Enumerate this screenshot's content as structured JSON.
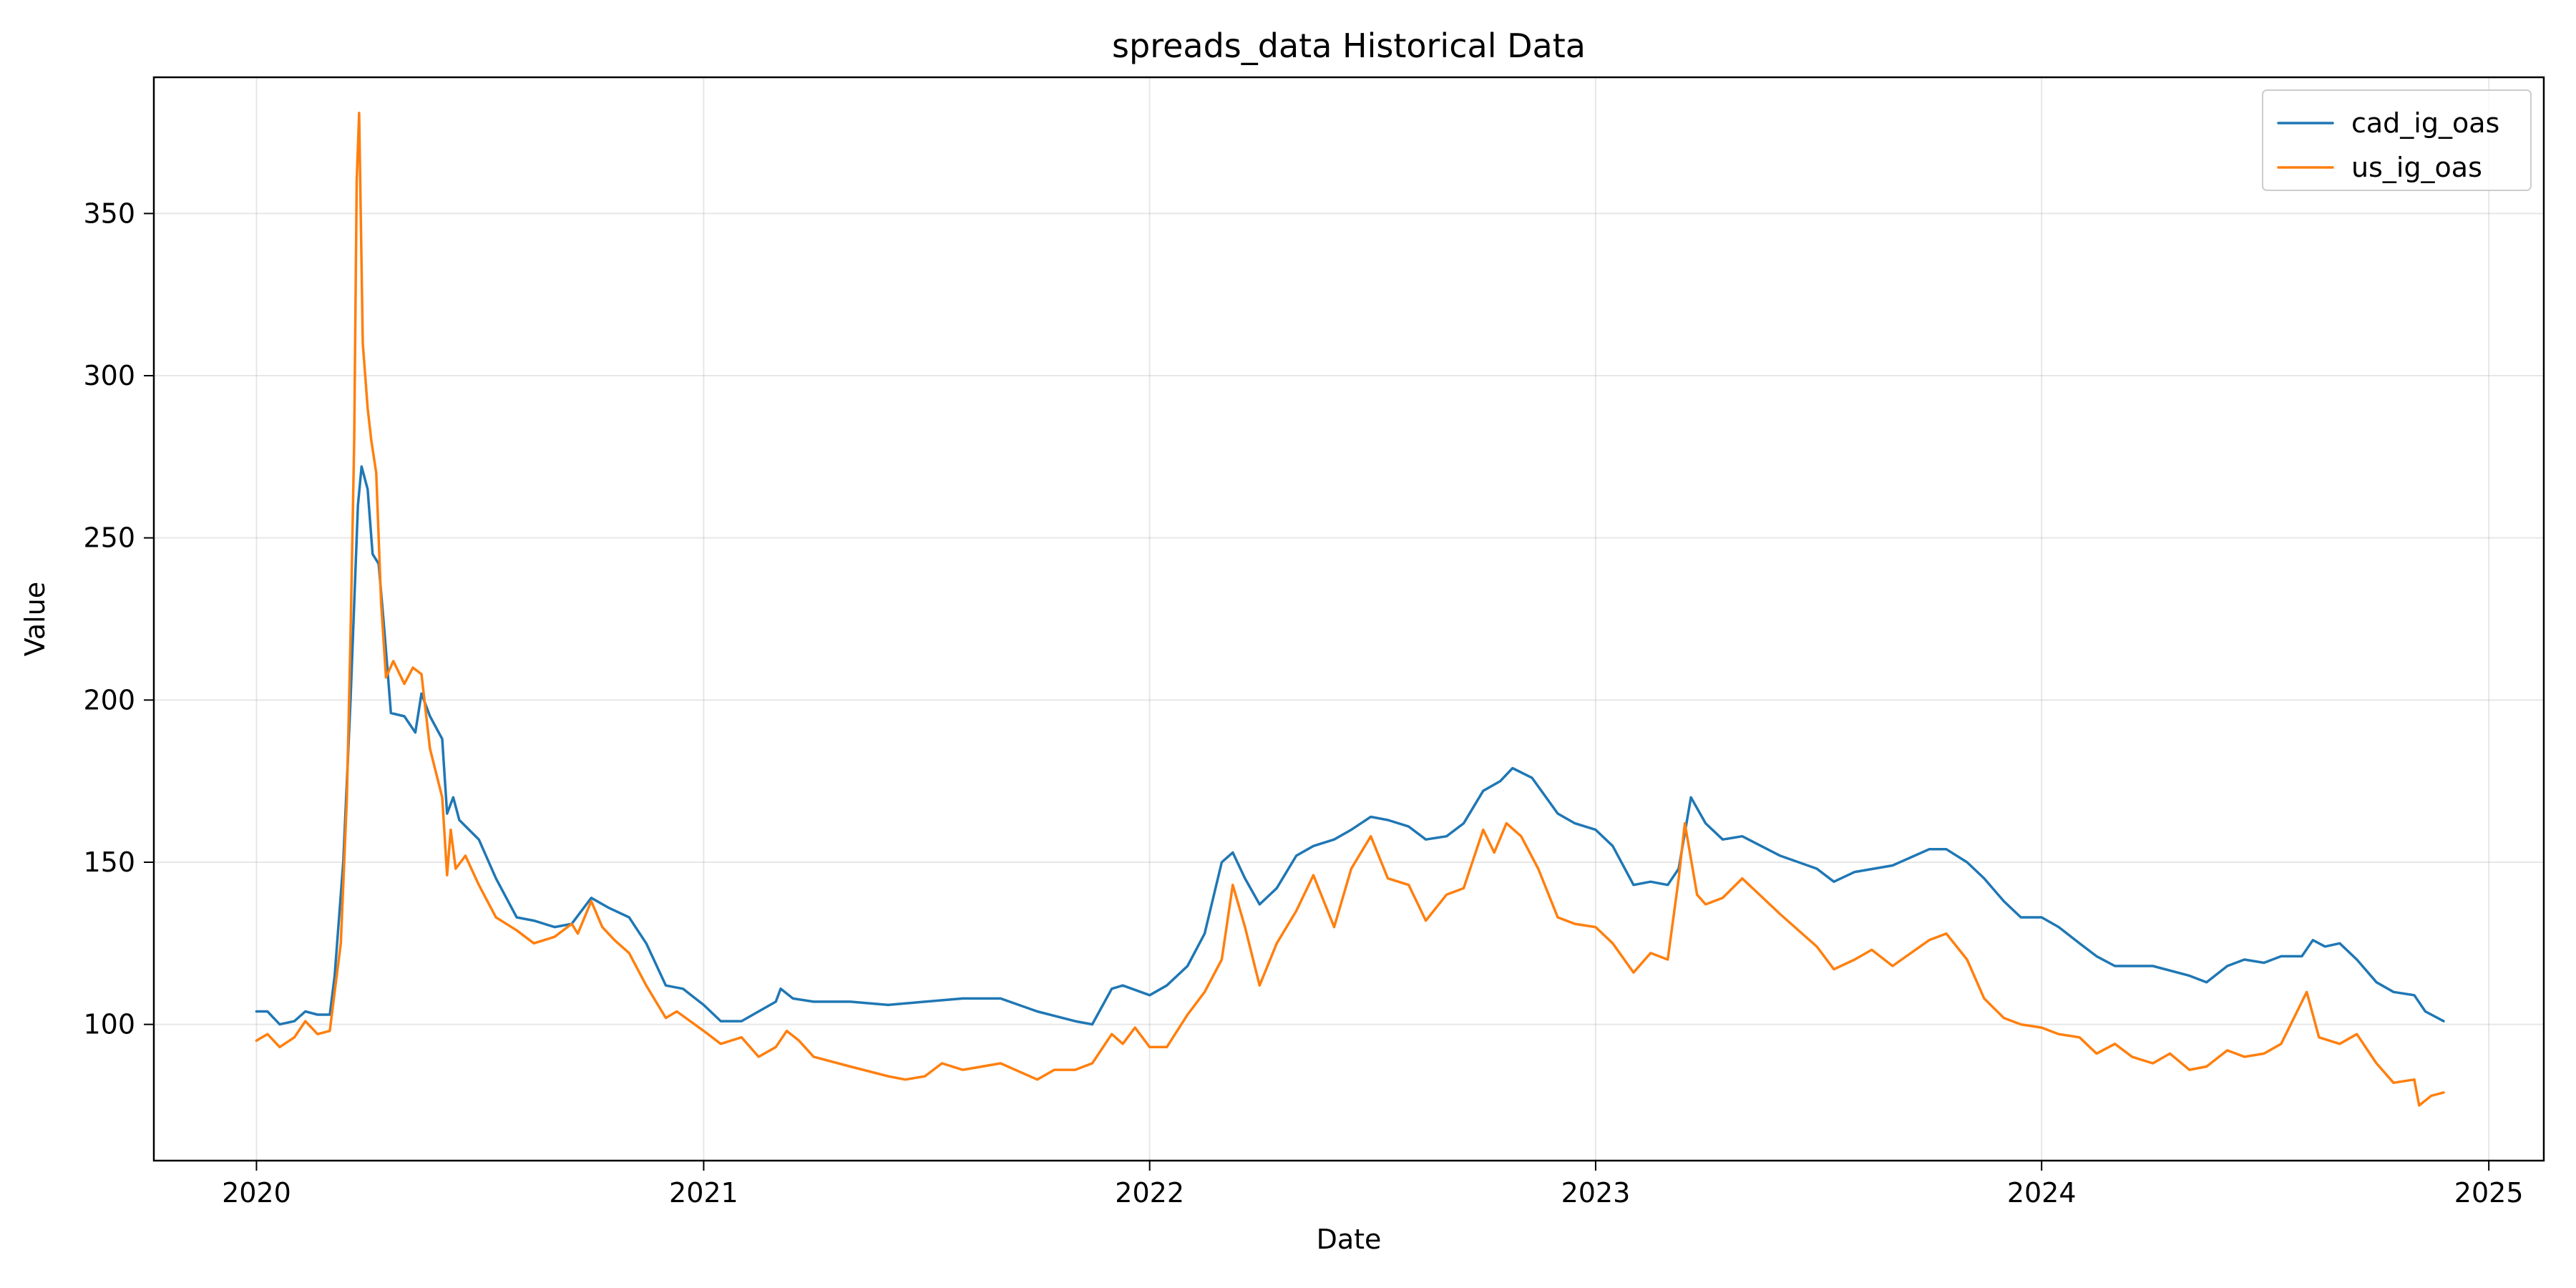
{
  "chart_data": {
    "type": "line",
    "title": "spreads_data Historical Data",
    "xlabel": "Date",
    "ylabel": "Value",
    "x_type": "date",
    "xlim": [
      "2019-10-09",
      "2025-02-15"
    ],
    "ylim": [
      58,
      392
    ],
    "xticks": [
      "2020-01-01",
      "2021-01-01",
      "2022-01-01",
      "2023-01-01",
      "2024-01-01",
      "2025-01-01"
    ],
    "xtick_labels": [
      "2020",
      "2021",
      "2022",
      "2023",
      "2024",
      "2025"
    ],
    "yticks": [
      100,
      150,
      200,
      250,
      300,
      350
    ],
    "ytick_labels": [
      "100",
      "150",
      "200",
      "250",
      "300",
      "350"
    ],
    "grid": true,
    "legend_position": "top-right",
    "colors": {
      "cad_ig_oas": "#1f77b4",
      "us_ig_oas": "#ff7f0e"
    },
    "series": [
      {
        "name": "cad_ig_oas",
        "color": "#1f77b4",
        "points": [
          [
            "2020-01-01",
            104
          ],
          [
            "2020-01-10",
            104
          ],
          [
            "2020-01-20",
            100
          ],
          [
            "2020-02-01",
            101
          ],
          [
            "2020-02-10",
            104
          ],
          [
            "2020-02-20",
            103
          ],
          [
            "2020-03-01",
            103
          ],
          [
            "2020-03-05",
            115
          ],
          [
            "2020-03-12",
            150
          ],
          [
            "2020-03-18",
            200
          ],
          [
            "2020-03-24",
            260
          ],
          [
            "2020-03-27",
            272
          ],
          [
            "2020-04-01",
            265
          ],
          [
            "2020-04-05",
            245
          ],
          [
            "2020-04-10",
            242
          ],
          [
            "2020-04-15",
            220
          ],
          [
            "2020-04-20",
            196
          ],
          [
            "2020-05-01",
            195
          ],
          [
            "2020-05-10",
            190
          ],
          [
            "2020-05-15",
            202
          ],
          [
            "2020-05-22",
            195
          ],
          [
            "2020-06-01",
            188
          ],
          [
            "2020-06-05",
            165
          ],
          [
            "2020-06-10",
            170
          ],
          [
            "2020-06-15",
            163
          ],
          [
            "2020-07-01",
            157
          ],
          [
            "2020-07-15",
            145
          ],
          [
            "2020-08-01",
            133
          ],
          [
            "2020-08-15",
            132
          ],
          [
            "2020-09-01",
            130
          ],
          [
            "2020-09-15",
            131
          ],
          [
            "2020-10-01",
            139
          ],
          [
            "2020-10-15",
            136
          ],
          [
            "2020-11-01",
            133
          ],
          [
            "2020-11-15",
            125
          ],
          [
            "2020-12-01",
            112
          ],
          [
            "2020-12-15",
            111
          ],
          [
            "2021-01-01",
            106
          ],
          [
            "2021-01-15",
            101
          ],
          [
            "2021-02-01",
            101
          ],
          [
            "2021-02-15",
            104
          ],
          [
            "2021-03-01",
            107
          ],
          [
            "2021-03-05",
            111
          ],
          [
            "2021-03-15",
            108
          ],
          [
            "2021-04-01",
            107
          ],
          [
            "2021-05-01",
            107
          ],
          [
            "2021-06-01",
            106
          ],
          [
            "2021-07-01",
            107
          ],
          [
            "2021-08-01",
            108
          ],
          [
            "2021-09-01",
            108
          ],
          [
            "2021-10-01",
            104
          ],
          [
            "2021-11-01",
            101
          ],
          [
            "2021-11-15",
            100
          ],
          [
            "2021-12-01",
            111
          ],
          [
            "2021-12-10",
            112
          ],
          [
            "2022-01-01",
            109
          ],
          [
            "2022-01-15",
            112
          ],
          [
            "2022-02-01",
            118
          ],
          [
            "2022-02-15",
            128
          ],
          [
            "2022-03-01",
            150
          ],
          [
            "2022-03-10",
            153
          ],
          [
            "2022-03-20",
            145
          ],
          [
            "2022-04-01",
            137
          ],
          [
            "2022-04-15",
            142
          ],
          [
            "2022-05-01",
            152
          ],
          [
            "2022-05-15",
            155
          ],
          [
            "2022-06-01",
            157
          ],
          [
            "2022-06-15",
            160
          ],
          [
            "2022-07-01",
            164
          ],
          [
            "2022-07-15",
            163
          ],
          [
            "2022-08-01",
            161
          ],
          [
            "2022-08-15",
            157
          ],
          [
            "2022-09-01",
            158
          ],
          [
            "2022-09-15",
            162
          ],
          [
            "2022-10-01",
            172
          ],
          [
            "2022-10-15",
            175
          ],
          [
            "2022-10-25",
            179
          ],
          [
            "2022-11-10",
            176
          ],
          [
            "2022-12-01",
            165
          ],
          [
            "2022-12-15",
            162
          ],
          [
            "2023-01-01",
            160
          ],
          [
            "2023-01-15",
            155
          ],
          [
            "2023-02-01",
            143
          ],
          [
            "2023-02-15",
            144
          ],
          [
            "2023-03-01",
            143
          ],
          [
            "2023-03-10",
            148
          ],
          [
            "2023-03-20",
            170
          ],
          [
            "2023-04-01",
            162
          ],
          [
            "2023-04-15",
            157
          ],
          [
            "2023-05-01",
            158
          ],
          [
            "2023-06-01",
            152
          ],
          [
            "2023-07-01",
            148
          ],
          [
            "2023-07-15",
            144
          ],
          [
            "2023-08-01",
            147
          ],
          [
            "2023-09-01",
            149
          ],
          [
            "2023-10-01",
            154
          ],
          [
            "2023-10-15",
            154
          ],
          [
            "2023-11-01",
            150
          ],
          [
            "2023-11-15",
            145
          ],
          [
            "2023-12-01",
            138
          ],
          [
            "2023-12-15",
            133
          ],
          [
            "2024-01-01",
            133
          ],
          [
            "2024-01-15",
            130
          ],
          [
            "2024-02-01",
            125
          ],
          [
            "2024-02-15",
            121
          ],
          [
            "2024-03-01",
            118
          ],
          [
            "2024-04-01",
            118
          ],
          [
            "2024-05-01",
            115
          ],
          [
            "2024-05-15",
            113
          ],
          [
            "2024-06-01",
            118
          ],
          [
            "2024-06-15",
            120
          ],
          [
            "2024-07-01",
            119
          ],
          [
            "2024-07-15",
            121
          ],
          [
            "2024-08-01",
            121
          ],
          [
            "2024-08-10",
            126
          ],
          [
            "2024-08-20",
            124
          ],
          [
            "2024-09-01",
            125
          ],
          [
            "2024-09-15",
            120
          ],
          [
            "2024-10-01",
            113
          ],
          [
            "2024-10-15",
            110
          ],
          [
            "2024-11-01",
            109
          ],
          [
            "2024-11-10",
            104
          ],
          [
            "2024-11-25",
            101
          ]
        ]
      },
      {
        "name": "us_ig_oas",
        "color": "#ff7f0e",
        "points": [
          [
            "2020-01-01",
            95
          ],
          [
            "2020-01-10",
            97
          ],
          [
            "2020-01-20",
            93
          ],
          [
            "2020-02-01",
            96
          ],
          [
            "2020-02-10",
            101
          ],
          [
            "2020-02-20",
            97
          ],
          [
            "2020-03-01",
            98
          ],
          [
            "2020-03-05",
            110
          ],
          [
            "2020-03-10",
            125
          ],
          [
            "2020-03-15",
            170
          ],
          [
            "2020-03-18",
            220
          ],
          [
            "2020-03-21",
            280
          ],
          [
            "2020-03-23",
            360
          ],
          [
            "2020-03-25",
            381
          ],
          [
            "2020-03-28",
            310
          ],
          [
            "2020-04-01",
            290
          ],
          [
            "2020-04-04",
            280
          ],
          [
            "2020-04-08",
            270
          ],
          [
            "2020-04-12",
            230
          ],
          [
            "2020-04-16",
            207
          ],
          [
            "2020-04-22",
            212
          ],
          [
            "2020-05-01",
            205
          ],
          [
            "2020-05-08",
            210
          ],
          [
            "2020-05-15",
            208
          ],
          [
            "2020-05-22",
            185
          ],
          [
            "2020-06-01",
            170
          ],
          [
            "2020-06-05",
            146
          ],
          [
            "2020-06-08",
            160
          ],
          [
            "2020-06-12",
            148
          ],
          [
            "2020-06-20",
            152
          ],
          [
            "2020-07-01",
            143
          ],
          [
            "2020-07-15",
            133
          ],
          [
            "2020-08-01",
            129
          ],
          [
            "2020-08-15",
            125
          ],
          [
            "2020-09-01",
            127
          ],
          [
            "2020-09-15",
            131
          ],
          [
            "2020-09-20",
            128
          ],
          [
            "2020-10-01",
            138
          ],
          [
            "2020-10-10",
            130
          ],
          [
            "2020-10-20",
            126
          ],
          [
            "2020-11-01",
            122
          ],
          [
            "2020-11-15",
            112
          ],
          [
            "2020-12-01",
            102
          ],
          [
            "2020-12-10",
            104
          ],
          [
            "2021-01-01",
            98
          ],
          [
            "2021-01-15",
            94
          ],
          [
            "2021-02-01",
            96
          ],
          [
            "2021-02-15",
            90
          ],
          [
            "2021-03-01",
            93
          ],
          [
            "2021-03-10",
            98
          ],
          [
            "2021-03-20",
            95
          ],
          [
            "2021-04-01",
            90
          ],
          [
            "2021-05-01",
            87
          ],
          [
            "2021-06-01",
            84
          ],
          [
            "2021-06-15",
            83
          ],
          [
            "2021-07-01",
            84
          ],
          [
            "2021-07-15",
            88
          ],
          [
            "2021-08-01",
            86
          ],
          [
            "2021-09-01",
            88
          ],
          [
            "2021-10-01",
            83
          ],
          [
            "2021-10-15",
            86
          ],
          [
            "2021-11-01",
            86
          ],
          [
            "2021-11-15",
            88
          ],
          [
            "2021-12-01",
            97
          ],
          [
            "2021-12-10",
            94
          ],
          [
            "2021-12-20",
            99
          ],
          [
            "2022-01-01",
            93
          ],
          [
            "2022-01-15",
            93
          ],
          [
            "2022-02-01",
            103
          ],
          [
            "2022-02-15",
            110
          ],
          [
            "2022-03-01",
            120
          ],
          [
            "2022-03-10",
            143
          ],
          [
            "2022-03-20",
            130
          ],
          [
            "2022-04-01",
            112
          ],
          [
            "2022-04-15",
            125
          ],
          [
            "2022-05-01",
            135
          ],
          [
            "2022-05-15",
            146
          ],
          [
            "2022-06-01",
            130
          ],
          [
            "2022-06-15",
            148
          ],
          [
            "2022-07-01",
            158
          ],
          [
            "2022-07-15",
            145
          ],
          [
            "2022-08-01",
            143
          ],
          [
            "2022-08-15",
            132
          ],
          [
            "2022-09-01",
            140
          ],
          [
            "2022-09-15",
            142
          ],
          [
            "2022-10-01",
            160
          ],
          [
            "2022-10-10",
            153
          ],
          [
            "2022-10-20",
            162
          ],
          [
            "2022-11-01",
            158
          ],
          [
            "2022-11-15",
            148
          ],
          [
            "2022-12-01",
            133
          ],
          [
            "2022-12-15",
            131
          ],
          [
            "2023-01-01",
            130
          ],
          [
            "2023-01-15",
            125
          ],
          [
            "2023-02-01",
            116
          ],
          [
            "2023-02-15",
            122
          ],
          [
            "2023-03-01",
            120
          ],
          [
            "2023-03-10",
            145
          ],
          [
            "2023-03-15",
            162
          ],
          [
            "2023-03-25",
            140
          ],
          [
            "2023-04-01",
            137
          ],
          [
            "2023-04-15",
            139
          ],
          [
            "2023-05-01",
            145
          ],
          [
            "2023-06-01",
            134
          ],
          [
            "2023-07-01",
            124
          ],
          [
            "2023-07-15",
            117
          ],
          [
            "2023-08-01",
            120
          ],
          [
            "2023-08-15",
            123
          ],
          [
            "2023-09-01",
            118
          ],
          [
            "2023-10-01",
            126
          ],
          [
            "2023-10-15",
            128
          ],
          [
            "2023-11-01",
            120
          ],
          [
            "2023-11-15",
            108
          ],
          [
            "2023-12-01",
            102
          ],
          [
            "2023-12-15",
            100
          ],
          [
            "2024-01-01",
            99
          ],
          [
            "2024-01-15",
            97
          ],
          [
            "2024-02-01",
            96
          ],
          [
            "2024-02-15",
            91
          ],
          [
            "2024-03-01",
            94
          ],
          [
            "2024-03-15",
            90
          ],
          [
            "2024-04-01",
            88
          ],
          [
            "2024-04-15",
            91
          ],
          [
            "2024-05-01",
            86
          ],
          [
            "2024-05-15",
            87
          ],
          [
            "2024-06-01",
            92
          ],
          [
            "2024-06-15",
            90
          ],
          [
            "2024-07-01",
            91
          ],
          [
            "2024-07-15",
            94
          ],
          [
            "2024-08-05",
            110
          ],
          [
            "2024-08-15",
            96
          ],
          [
            "2024-09-01",
            94
          ],
          [
            "2024-09-15",
            97
          ],
          [
            "2024-10-01",
            88
          ],
          [
            "2024-10-15",
            82
          ],
          [
            "2024-11-01",
            83
          ],
          [
            "2024-11-05",
            75
          ],
          [
            "2024-11-15",
            78
          ],
          [
            "2024-11-25",
            79
          ]
        ]
      }
    ]
  }
}
